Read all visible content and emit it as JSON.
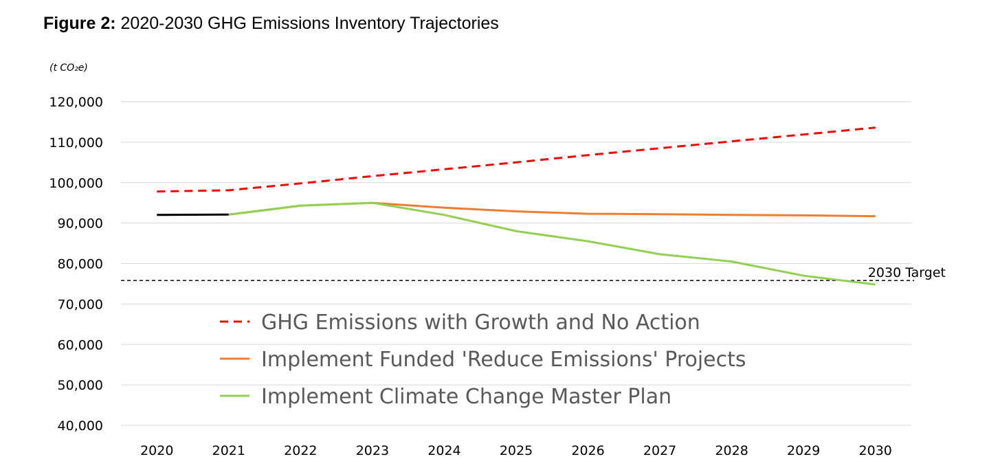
{
  "figure": {
    "label": "Figure 2:",
    "title": "2020-2030 GHG Emissions Inventory Trajectories"
  },
  "chart_data": {
    "type": "line",
    "ylabel_unit": "(t CO₂e)",
    "ylim": [
      40000,
      120000
    ],
    "yticks": [
      40000,
      50000,
      60000,
      70000,
      80000,
      90000,
      100000,
      110000,
      120000
    ],
    "ytick_labels": [
      "40,000",
      "50,000",
      "60,000",
      "70,000",
      "80,000",
      "90,000",
      "100,000",
      "110,000",
      "120,000"
    ],
    "x": [
      "2020",
      "2021",
      "2022",
      "2023",
      "2024",
      "2025",
      "2026",
      "2027",
      "2028",
      "2029",
      "2030"
    ],
    "grid": true,
    "series": [
      {
        "key": "historical",
        "color": "#000000",
        "style": "solid",
        "values": [
          92000,
          92100,
          null,
          null,
          null,
          null,
          null,
          null,
          null,
          null,
          null
        ]
      },
      {
        "key": "no_action",
        "name": "GHG Emissions with Growth and No Action",
        "color": "#ff0000",
        "style": "dashed",
        "values": [
          97800,
          98100,
          99800,
          101600,
          103300,
          105000,
          106800,
          108500,
          110200,
          111900,
          113600
        ]
      },
      {
        "key": "funded",
        "name": "Implement Funded 'Reduce Emissions' Projects",
        "color": "#ed7d31",
        "style": "solid",
        "values": [
          null,
          92100,
          94300,
          95000,
          93800,
          92900,
          92300,
          92200,
          92000,
          91900,
          91700
        ]
      },
      {
        "key": "master_plan",
        "name": "Implement Climate Change Master Plan",
        "color": "#92d050",
        "style": "solid",
        "values": [
          null,
          92100,
          94300,
          95000,
          92000,
          88000,
          85500,
          82300,
          80500,
          77000,
          74800
        ]
      }
    ],
    "legend": {
      "placement": "inside-bottom-center",
      "entries": [
        "GHG Emissions with Growth and No Action",
        "Implement Funded 'Reduce Emissions' Projects",
        "Implement Climate Change Master Plan"
      ]
    },
    "annotations": [
      {
        "key": "target",
        "label": "2030 Target",
        "y": 75800,
        "color": "#000000",
        "style": "dashed"
      }
    ]
  }
}
